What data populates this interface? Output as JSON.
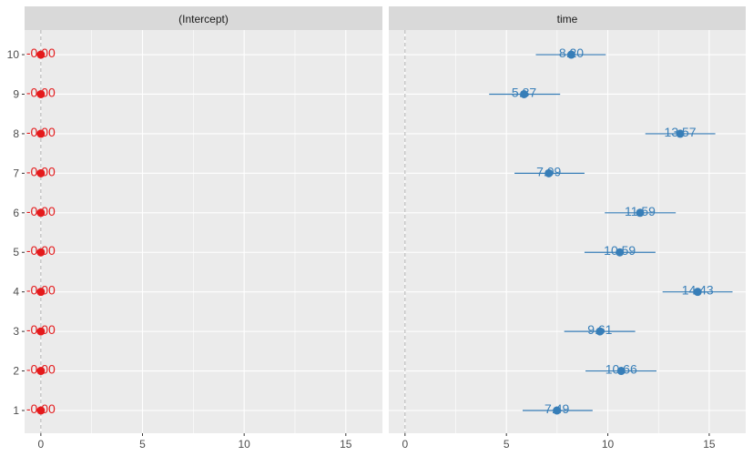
{
  "chart_data": {
    "type": "scatter",
    "subtype": "coefficient-errorbar (faceted)",
    "title": "",
    "xlabel": "",
    "ylabel": "",
    "xlim": [
      -0.8,
      16.8
    ],
    "ylim": [
      0.5,
      10.6
    ],
    "xticks": [
      0,
      5,
      10,
      15
    ],
    "yticks": [
      1,
      2,
      3,
      4,
      5,
      6,
      7,
      8,
      9,
      10
    ],
    "grid": true,
    "reference_line": {
      "x": 0,
      "style": "dashed",
      "color": "#b3b3b3"
    },
    "panels": [
      {
        "strip": "(Intercept)",
        "color": "#e41a1c",
        "points": [
          {
            "y": 10,
            "x": 0.0,
            "label": "-0.00"
          },
          {
            "y": 9,
            "x": 0.0,
            "label": "-0.00"
          },
          {
            "y": 8,
            "x": 0.0,
            "label": "-0.00"
          },
          {
            "y": 7,
            "x": 0.0,
            "label": "-0.00"
          },
          {
            "y": 6,
            "x": 0.0,
            "label": "-0.00"
          },
          {
            "y": 5,
            "x": 0.0,
            "label": "-0.00"
          },
          {
            "y": 4,
            "x": 0.0,
            "label": "-0.00"
          },
          {
            "y": 3,
            "x": 0.0,
            "label": "-0.00"
          },
          {
            "y": 2,
            "x": 0.0,
            "label": "-0.00"
          },
          {
            "y": 1,
            "x": 0.0,
            "label": "-0.00"
          }
        ]
      },
      {
        "strip": "time",
        "color": "#377eb8",
        "points": [
          {
            "y": 10,
            "x": 8.2,
            "lo": 6.45,
            "hi": 9.9,
            "label": "8.20"
          },
          {
            "y": 9,
            "x": 5.87,
            "lo": 4.15,
            "hi": 7.65,
            "label": "5.87"
          },
          {
            "y": 8,
            "x": 13.57,
            "lo": 11.85,
            "hi": 15.3,
            "label": "13.57"
          },
          {
            "y": 7,
            "x": 7.09,
            "lo": 5.4,
            "hi": 8.85,
            "label": "7.09"
          },
          {
            "y": 6,
            "x": 11.59,
            "lo": 9.85,
            "hi": 13.35,
            "label": "11.59"
          },
          {
            "y": 5,
            "x": 10.59,
            "lo": 8.85,
            "hi": 12.35,
            "label": "10.59"
          },
          {
            "y": 4,
            "x": 14.43,
            "lo": 12.7,
            "hi": 16.15,
            "label": "14.43"
          },
          {
            "y": 3,
            "x": 9.61,
            "lo": 7.85,
            "hi": 11.35,
            "label": "9.61"
          },
          {
            "y": 2,
            "x": 10.66,
            "lo": 8.9,
            "hi": 12.4,
            "label": "10.66"
          },
          {
            "y": 1,
            "x": 7.49,
            "lo": 5.8,
            "hi": 9.25,
            "label": "7.49"
          }
        ]
      }
    ]
  },
  "colors": {
    "panel_bg": "#ebebeb",
    "strip_bg": "#d9d9d9",
    "grid_major": "#ffffff",
    "tick_text": "#4d4d4d",
    "intercept": "#e41a1c",
    "time": "#377eb8"
  }
}
